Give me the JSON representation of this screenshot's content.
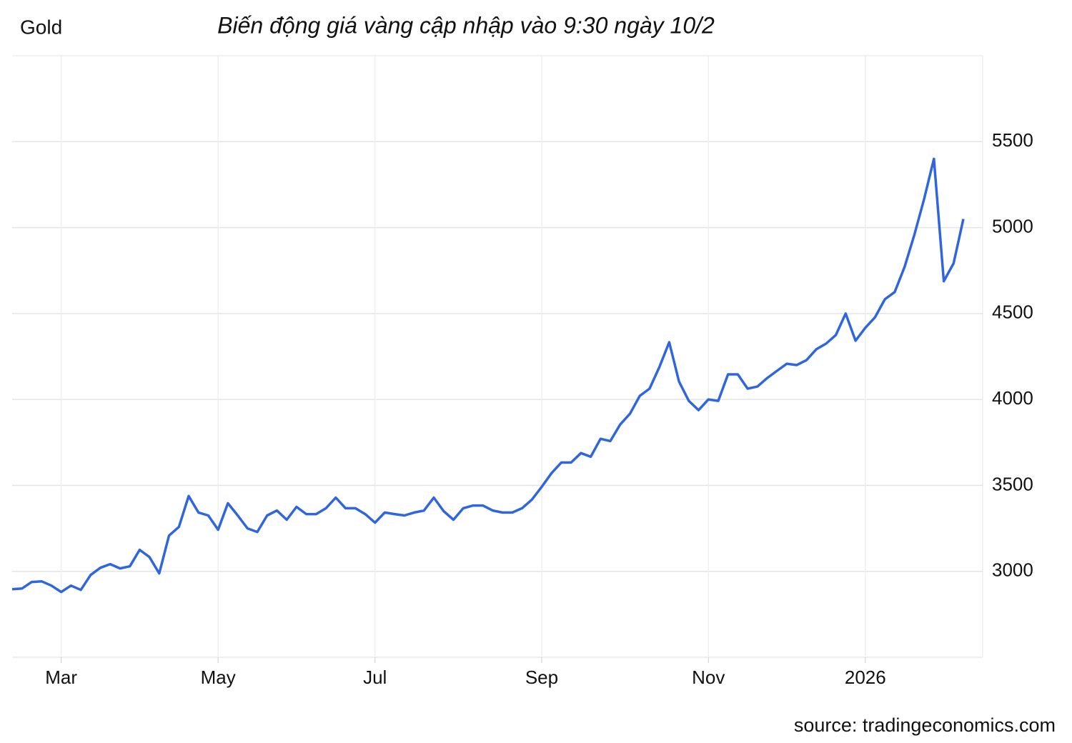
{
  "chart_data": {
    "type": "line",
    "label": "Gold",
    "title": "Biến động giá vàng cập nhập vào 9:30 ngày 10/2",
    "source": "source: tradingeconomics.com",
    "categories": [
      null,
      null,
      null,
      null,
      null,
      "Mar",
      null,
      null,
      null,
      null,
      null,
      null,
      null,
      null,
      null,
      null,
      null,
      null,
      null,
      null,
      null,
      "May",
      null,
      null,
      null,
      null,
      null,
      null,
      null,
      null,
      null,
      null,
      null,
      null,
      null,
      null,
      null,
      "Jul",
      null,
      null,
      null,
      null,
      null,
      null,
      null,
      null,
      null,
      null,
      null,
      null,
      null,
      null,
      null,
      null,
      "Sep",
      null,
      null,
      null,
      null,
      null,
      null,
      null,
      null,
      null,
      null,
      null,
      null,
      null,
      null,
      null,
      null,
      "Nov",
      null,
      null,
      null,
      null,
      null,
      null,
      null,
      null,
      null,
      null,
      null,
      null,
      null,
      null,
      null,
      "2026",
      null,
      null,
      null,
      null,
      null,
      null,
      null,
      null,
      null,
      null
    ],
    "series": [
      {
        "name": "Gold",
        "color": "#2f66e0",
        "values": [
          2896,
          2900,
          2938,
          2942,
          2917,
          2880,
          2917,
          2892,
          2979,
          3021,
          3042,
          3017,
          3029,
          3125,
          3083,
          2988,
          3208,
          3258,
          3438,
          3342,
          3325,
          3242,
          3396,
          3325,
          3250,
          3229,
          3325,
          3354,
          3300,
          3375,
          3333,
          3333,
          3367,
          3429,
          3367,
          3367,
          3333,
          3283,
          3342,
          3333,
          3325,
          3342,
          3354,
          3429,
          3350,
          3300,
          3367,
          3383,
          3383,
          3354,
          3342,
          3342,
          3367,
          3417,
          3492,
          3571,
          3633,
          3633,
          3688,
          3667,
          3771,
          3758,
          3854,
          3917,
          4021,
          4063,
          4188,
          4333,
          4104,
          3992,
          3938,
          4000,
          3992,
          4146,
          4146,
          4063,
          4075,
          4125,
          4167,
          4208,
          4200,
          4229,
          4292,
          4325,
          4375,
          4500,
          4342,
          4417,
          4479,
          4583,
          4625,
          4771,
          4958,
          5167,
          5400,
          4688,
          4792,
          5050
        ]
      }
    ],
    "ylim": [
      2500,
      6000
    ],
    "yticks": [
      3000,
      3500,
      4000,
      4500,
      5000,
      5500
    ],
    "grid": true
  }
}
